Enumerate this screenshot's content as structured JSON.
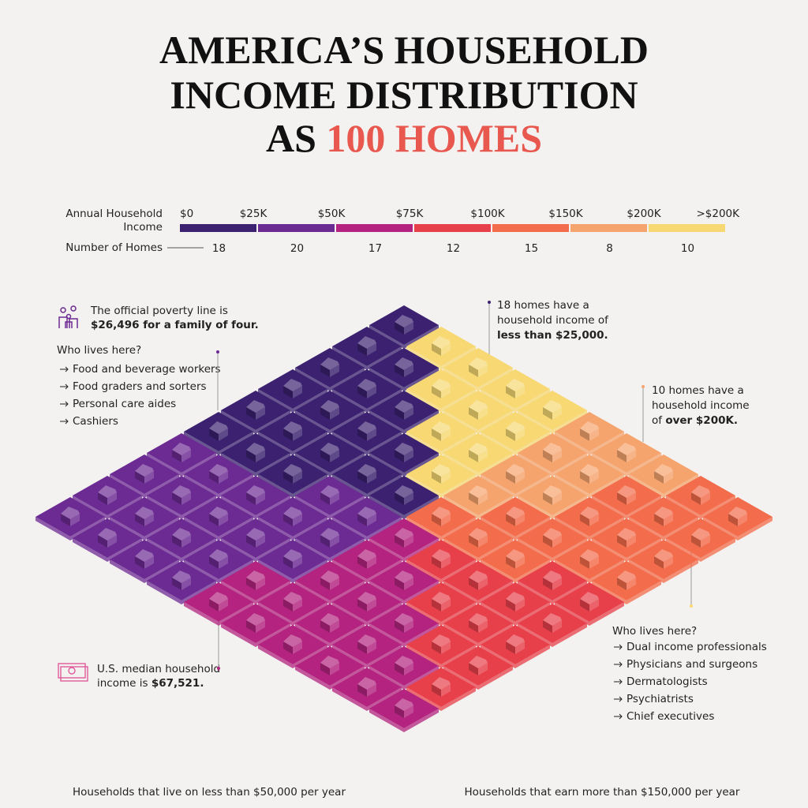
{
  "chart_data": {
    "type": "waffle",
    "title_lines": [
      "AMERICA’S HOUSEHOLD",
      "INCOME DISTRIBUTION"
    ],
    "title_prefix": "AS",
    "title_highlight": "100 HOMES",
    "legend_label": [
      "Annual Household",
      "Income"
    ],
    "count_label": "Number of Homes",
    "bin_labels": [
      "$0",
      "$25K",
      "$50K",
      "$75K",
      "$100K",
      "$150K",
      "$200K",
      ">$200K"
    ],
    "values": [
      18,
      20,
      17,
      12,
      15,
      8,
      10
    ],
    "colors": [
      "#3b2170",
      "#6c2a93",
      "#b3237f",
      "#e8404b",
      "#f36c4b",
      "#f6a46e",
      "#f7d873"
    ],
    "annotations": {
      "poverty": {
        "text": "The official poverty line is",
        "bold": "$26,496 for a family of four."
      },
      "low_jobs": {
        "heading": "Who lives here?",
        "items": [
          "Food and beverage workers",
          "Food graders and sorters",
          "Personal care aides",
          "Cashiers"
        ]
      },
      "low_count": {
        "lines": [
          "18 homes have a",
          "household income of"
        ],
        "bold": "less than $25,000."
      },
      "high_count": {
        "lines": [
          "10 homes have a",
          "household income"
        ],
        "prefix": "of",
        "bold": "over $200K."
      },
      "median": {
        "text": "U.S. median household",
        "prefix": "income is",
        "bold": "$67,521."
      },
      "high_jobs": {
        "heading": "Who lives here?",
        "items": [
          "Dual income professionals",
          "Physicians and surgeons",
          "Dermatologists",
          "Psychiatrists",
          "Chief executives"
        ]
      }
    },
    "footer_left": "Households that live on less than $50,000 per year",
    "footer_right": "Households that earn more than $150,000 per year"
  }
}
